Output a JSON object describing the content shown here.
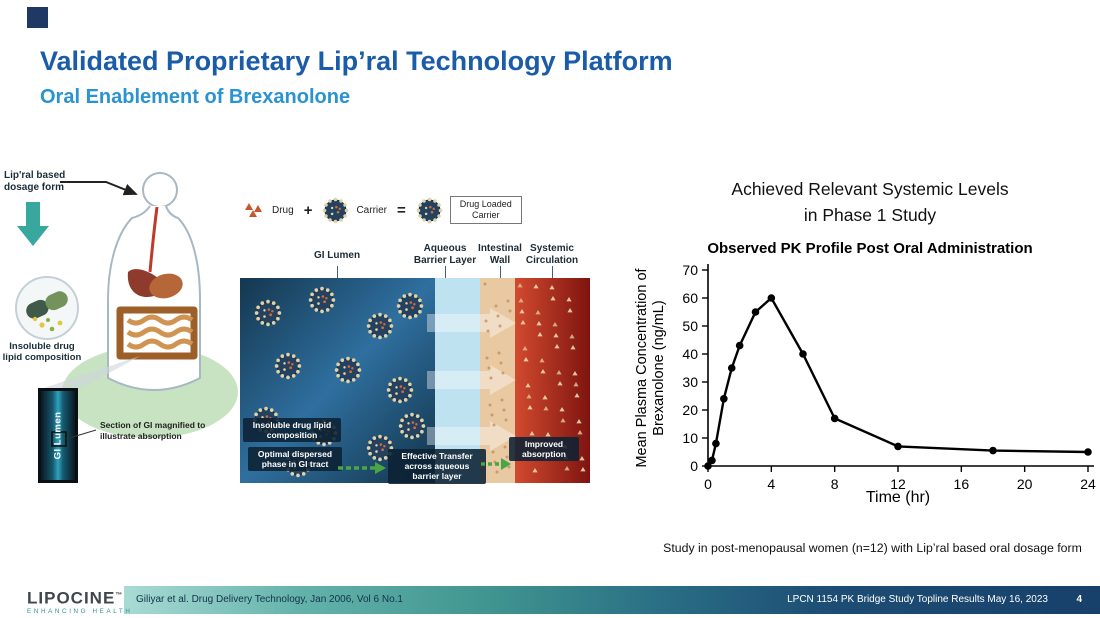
{
  "slide": {
    "title": "Validated Proprietary Lip’ral Technology Platform",
    "subtitle": "Oral Enablement of Brexanolone"
  },
  "left_diagram": {
    "dosage_form_label": "Lip'ral based dosage form",
    "insoluble_label": "Insoluble drug lipid composition",
    "gi_lumen_label": "GI Lumen",
    "magnified_caption": "Section of GI magnified to illustrate absorption"
  },
  "mechanism_diagram": {
    "legend": {
      "drug": "Drug",
      "plus": "+",
      "carrier": "Carrier",
      "equals": "=",
      "loaded": "Drug Loaded Carrier"
    },
    "zones": [
      "GI Lumen",
      "Aqueous Barrier Layer",
      "Intestinal Wall",
      "Systemic Circulation"
    ],
    "labels": {
      "insoluble": "Insoluble drug lipid composition",
      "dispersed": "Optimal dispersed phase in GI tract",
      "transfer": "Effective Transfer across aqueous barrier layer",
      "absorption": "Improved absorption"
    }
  },
  "right_panel": {
    "heading_line1": "Achieved Relevant Systemic Levels",
    "heading_line2": "in Phase 1 Study",
    "footnote": "Study in post-menopausal women (n=12) with Lip’ral based oral dosage form"
  },
  "chart_data": {
    "type": "line",
    "title": "Observed PK Profile Post Oral Administration",
    "xlabel": "Time (hr)",
    "ylabel_line1": "Mean Plasma Concentration of",
    "ylabel_line2": "Brexanolone (ng/mL)",
    "xlim": [
      0,
      24
    ],
    "ylim": [
      0,
      70
    ],
    "xticks": [
      0,
      4,
      8,
      12,
      16,
      20,
      24
    ],
    "yticks": [
      0,
      10,
      20,
      30,
      40,
      50,
      60,
      70
    ],
    "x": [
      0,
      0.25,
      0.5,
      1,
      1.5,
      2,
      3,
      4,
      6,
      8,
      12,
      18,
      24
    ],
    "y": [
      0,
      2,
      8,
      24,
      35,
      43,
      55,
      60,
      40,
      17,
      7,
      5.5,
      5
    ],
    "line_color": "#000000",
    "grid": false,
    "legend": "none"
  },
  "footer": {
    "logo_text": "LIPOCINE",
    "logo_tm": "™",
    "logo_tagline": "ENHANCING HEALTH",
    "citation": "Giliyar et al. Drug Delivery Technology, Jan 2006, Vol 6 No.1",
    "deck_title": "LPCN 1154 PK Bridge Study Topline Results May 16, 2023",
    "page_number": "4"
  },
  "colors": {
    "title_blue": "#1b5ca8",
    "subtitle_blue": "#2a93d1",
    "accent_navy": "#1f3864",
    "footer_teal": "#3f948f",
    "green_arrow": "#4aa546"
  }
}
